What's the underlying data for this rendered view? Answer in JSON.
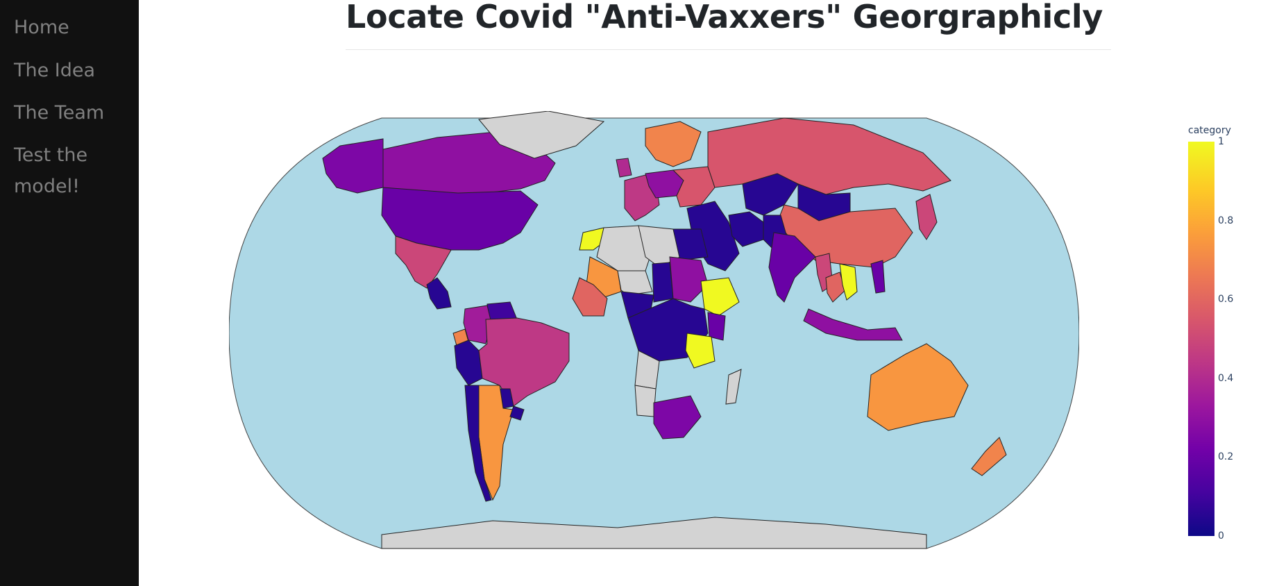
{
  "sidebar": {
    "items": [
      {
        "label": "Home"
      },
      {
        "label": "The Idea"
      },
      {
        "label": "The Team"
      },
      {
        "label": "Test the\nmodel!"
      }
    ]
  },
  "page": {
    "title": "Locate Covid \"Anti-Vaxxers\" Georgraphicly"
  },
  "chart_data": {
    "type": "choropleth",
    "projection": "natural earth",
    "colorscale": "plasma",
    "colors": {
      "ocean": "#add8e6",
      "land_no_data": "#d3d3d3",
      "scale": [
        "#0d0887",
        "#46039f",
        "#7201a8",
        "#9c179e",
        "#bd3786",
        "#d8576b",
        "#ed7953",
        "#fb9f3a",
        "#fdca26",
        "#f0f921"
      ]
    },
    "colorbar": {
      "title": "category",
      "range": [
        0,
        1
      ],
      "tick_labels": [
        "0",
        "0.2",
        "0.4",
        "0.6",
        "0.8",
        "1"
      ]
    },
    "regions": [
      {
        "name": "Canada",
        "value": 0.3
      },
      {
        "name": "Alaska",
        "value": 0.25
      },
      {
        "name": "United States",
        "value": 0.2
      },
      {
        "name": "Mexico",
        "value": 0.5
      },
      {
        "name": "Central America",
        "value": 0.05
      },
      {
        "name": "Venezuela",
        "value": 0.1
      },
      {
        "name": "Colombia",
        "value": 0.35
      },
      {
        "name": "Ecuador",
        "value": 0.7
      },
      {
        "name": "Peru",
        "value": 0.05
      },
      {
        "name": "Brazil",
        "value": 0.45
      },
      {
        "name": "Paraguay",
        "value": 0.05
      },
      {
        "name": "Argentina",
        "value": 0.75
      },
      {
        "name": "Chile",
        "value": 0.05
      },
      {
        "name": "Uruguay",
        "value": 0.05
      },
      {
        "name": "Greenland",
        "value": null
      },
      {
        "name": "Scandinavia",
        "value": 0.7
      },
      {
        "name": "UK",
        "value": 0.4
      },
      {
        "name": "Western Europe",
        "value": 0.45
      },
      {
        "name": "Central Europe",
        "value": 0.3
      },
      {
        "name": "Eastern Europe",
        "value": 0.55
      },
      {
        "name": "Russia",
        "value": 0.55
      },
      {
        "name": "Kazakhstan",
        "value": 0.05
      },
      {
        "name": "Mongolia",
        "value": 0.05
      },
      {
        "name": "China",
        "value": 0.6
      },
      {
        "name": "Japan",
        "value": 0.5
      },
      {
        "name": "Middle East",
        "value": 0.05
      },
      {
        "name": "Iran",
        "value": 0.05
      },
      {
        "name": "Pakistan",
        "value": 0.05
      },
      {
        "name": "India",
        "value": 0.2
      },
      {
        "name": "Myanmar",
        "value": 0.5
      },
      {
        "name": "Thailand",
        "value": 0.6
      },
      {
        "name": "Vietnam",
        "value": 1
      },
      {
        "name": "Indonesia",
        "value": 0.3
      },
      {
        "name": "Philippines",
        "value": 0.2
      },
      {
        "name": "Australia",
        "value": 0.75
      },
      {
        "name": "New Zealand",
        "value": 0.7
      },
      {
        "name": "Morocco",
        "value": 1
      },
      {
        "name": "Algeria",
        "value": null
      },
      {
        "name": "Libya",
        "value": null
      },
      {
        "name": "Egypt",
        "value": 0.05
      },
      {
        "name": "Mali",
        "value": 0.75
      },
      {
        "name": "Niger",
        "value": null
      },
      {
        "name": "Chad",
        "value": 0.05
      },
      {
        "name": "Sudan",
        "value": 0.3
      },
      {
        "name": "Ethiopia",
        "value": 1
      },
      {
        "name": "Nigeria",
        "value": 0.05
      },
      {
        "name": "West Africa",
        "value": 0.6
      },
      {
        "name": "Central Africa",
        "value": 0.05
      },
      {
        "name": "Kenya",
        "value": 0.2
      },
      {
        "name": "Tanzania",
        "value": 1
      },
      {
        "name": "Angola",
        "value": null
      },
      {
        "name": "Namibia",
        "value": null
      },
      {
        "name": "South Africa",
        "value": 0.25
      },
      {
        "name": "Madagascar",
        "value": null
      },
      {
        "name": "Antarctica",
        "value": null
      }
    ]
  }
}
